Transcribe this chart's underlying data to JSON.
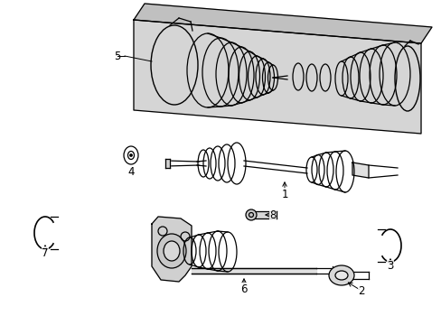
{
  "background_color": "#ffffff",
  "line_color": "#000000",
  "fig_width": 4.89,
  "fig_height": 3.6,
  "dpi": 100,
  "box_gray": "#d8d8d8",
  "box_gray2": "#c8c8c8",
  "part_gray": "#e8e8e8"
}
